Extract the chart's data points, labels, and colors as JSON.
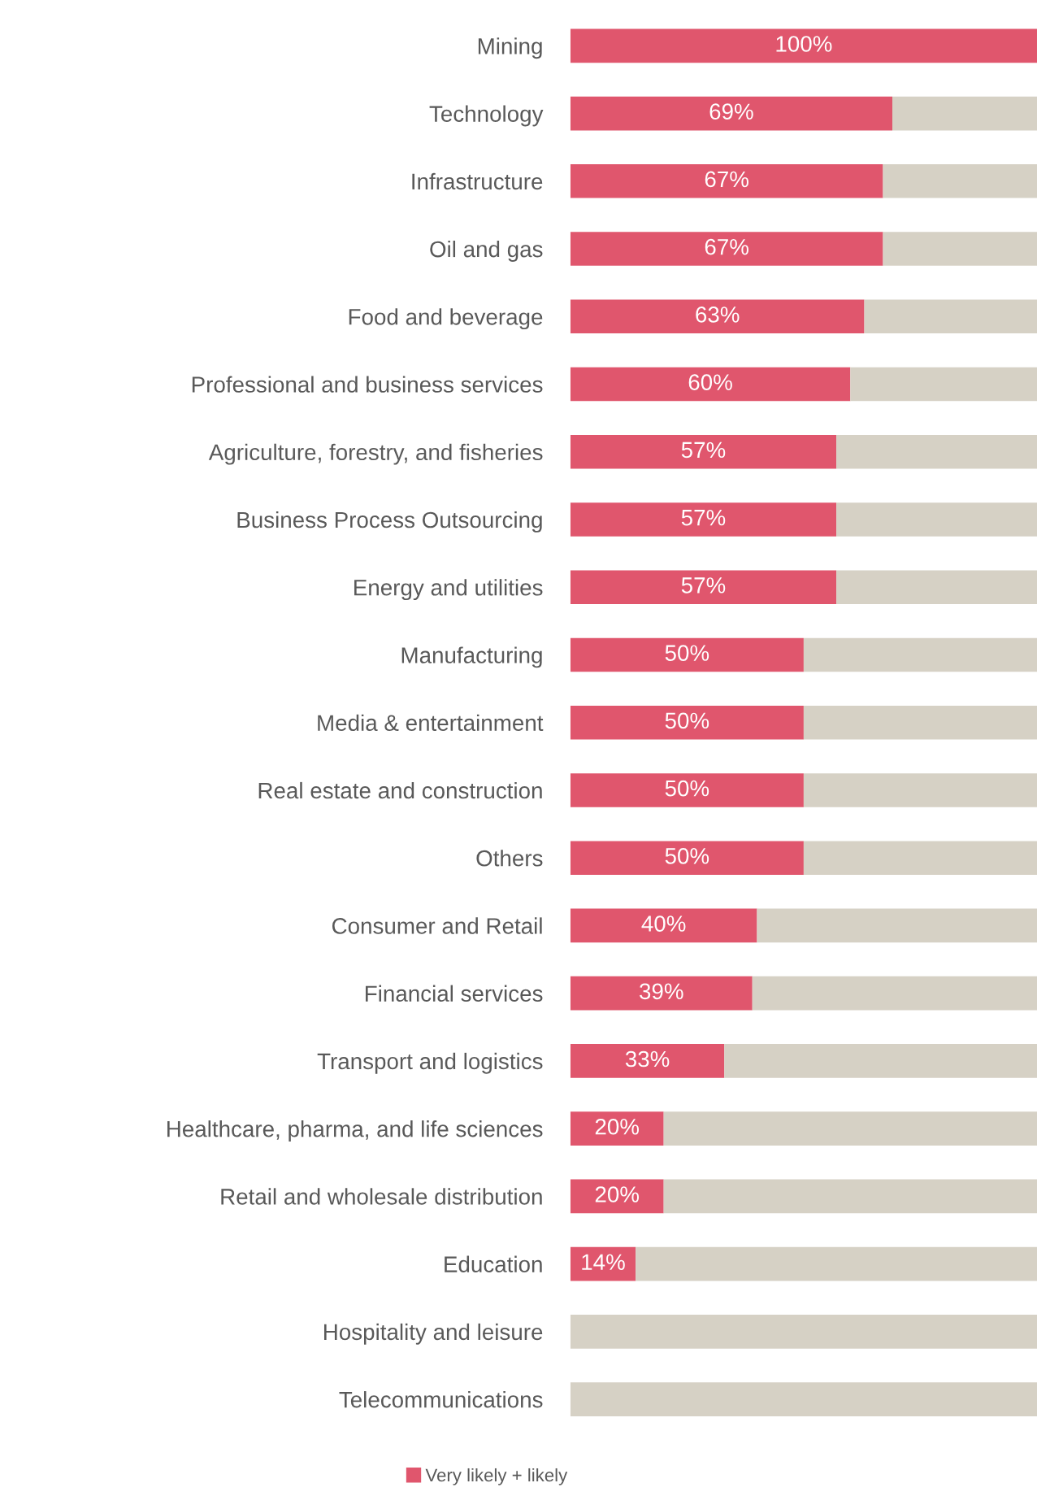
{
  "chart_data": {
    "type": "bar",
    "orientation": "horizontal",
    "stacked": true,
    "categories": [
      "Mining",
      "Technology",
      "Infrastructure",
      "Oil and gas",
      "Food and beverage",
      "Professional and business services",
      "Agriculture, forestry, and fisheries",
      "Business Process Outsourcing",
      "Energy and utilities",
      "Manufacturing",
      "Media & entertainment",
      "Real estate and construction",
      "Others",
      "Consumer and Retail",
      "Financial services",
      "Transport and logistics",
      "Healthcare, pharma, and life sciences",
      "Retail and wholesale distribution",
      "Education",
      "Hospitality and leisure",
      "Telecommunications"
    ],
    "series": [
      {
        "name": "Very likely + likely",
        "color": "#e0566d",
        "values": [
          100,
          69,
          67,
          67,
          63,
          60,
          57,
          57,
          57,
          50,
          50,
          50,
          50,
          40,
          39,
          33,
          20,
          20,
          14,
          0,
          0
        ],
        "value_labels": [
          "100%",
          "69%",
          "67%",
          "67%",
          "63%",
          "60%",
          "57%",
          "57%",
          "57%",
          "50%",
          "50%",
          "50%",
          "50%",
          "40%",
          "39%",
          "33%",
          "20%",
          "20%",
          "14%",
          null,
          null
        ]
      },
      {
        "color": "#d6d1c5",
        "values": [
          0,
          31,
          33,
          33,
          37,
          40,
          43,
          43,
          43,
          50,
          50,
          50,
          50,
          60,
          61,
          67,
          80,
          80,
          86,
          100,
          100
        ]
      }
    ],
    "xlim": [
      0,
      100
    ],
    "tick_labels": "y",
    "grid": false,
    "legend": "bottom"
  }
}
